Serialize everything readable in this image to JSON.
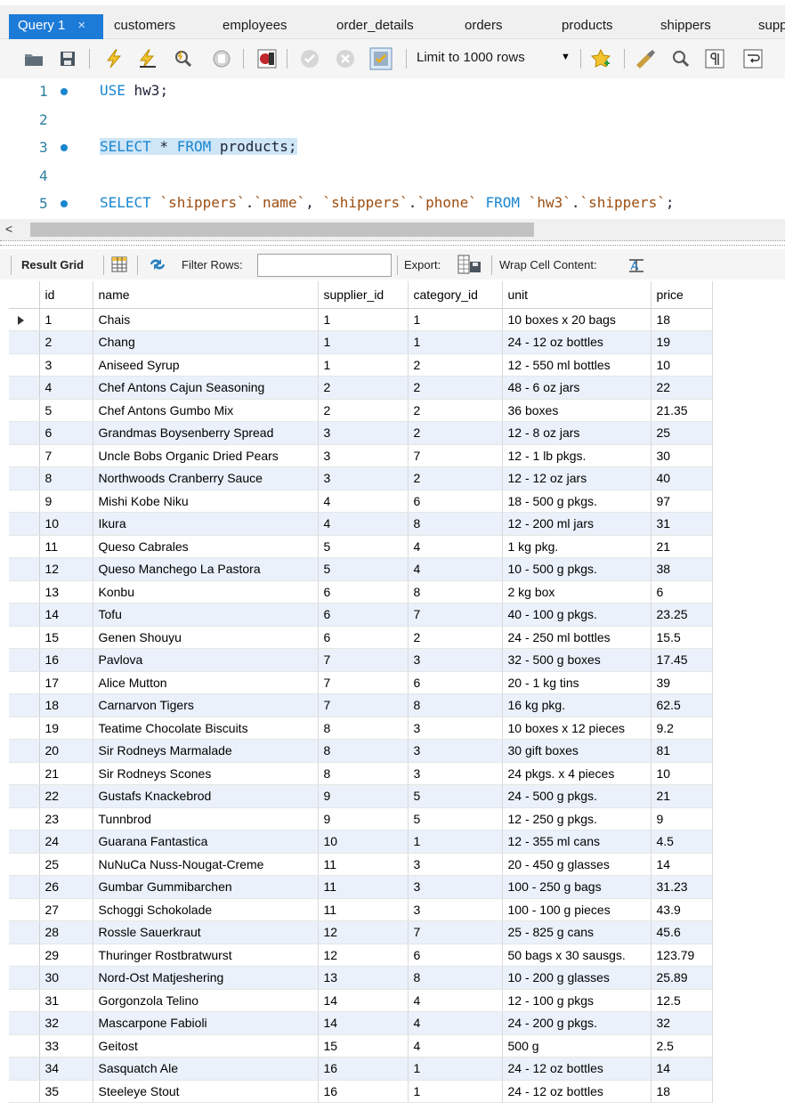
{
  "tabs": [
    {
      "label": "Query 1",
      "active": true
    },
    {
      "label": "customers"
    },
    {
      "label": "employees"
    },
    {
      "label": "order_details"
    },
    {
      "label": "orders"
    },
    {
      "label": "products"
    },
    {
      "label": "shippers"
    },
    {
      "label": "supp"
    }
  ],
  "tab_close": "×",
  "toolbar": {
    "limit_label": "Limit to 1000 rows",
    "limit_arrow": "▼"
  },
  "editor": {
    "lines": [
      {
        "number": "1",
        "dot": true,
        "parts": [
          {
            "t": "USE",
            "c": "kw"
          },
          {
            "t": " hw3;",
            "c": "ident"
          }
        ]
      },
      {
        "number": "2",
        "dot": false,
        "parts": []
      },
      {
        "number": "3",
        "dot": true,
        "highlight": true,
        "parts": [
          {
            "t": "SELECT",
            "c": "kw"
          },
          {
            "t": " * ",
            "c": "ident"
          },
          {
            "t": "FROM",
            "c": "kw"
          },
          {
            "t": " products;",
            "c": "ident"
          }
        ]
      },
      {
        "number": "4",
        "dot": false,
        "parts": []
      },
      {
        "number": "5",
        "dot": true,
        "parts": [
          {
            "t": "SELECT",
            "c": "kw"
          },
          {
            "t": " ",
            "c": "ident"
          },
          {
            "t": "`shippers`",
            "c": "str"
          },
          {
            "t": ".",
            "c": "ident"
          },
          {
            "t": "`name`",
            "c": "str"
          },
          {
            "t": ", ",
            "c": "ident"
          },
          {
            "t": "`shippers`",
            "c": "str"
          },
          {
            "t": ".",
            "c": "ident"
          },
          {
            "t": "`phone`",
            "c": "str"
          },
          {
            "t": " ",
            "c": "ident"
          },
          {
            "t": "FROM",
            "c": "kw"
          },
          {
            "t": " ",
            "c": "ident"
          },
          {
            "t": "`hw3`",
            "c": "str"
          },
          {
            "t": ".",
            "c": "ident"
          },
          {
            "t": "`shippers`",
            "c": "str"
          },
          {
            "t": ";",
            "c": "ident"
          }
        ]
      }
    ]
  },
  "scroll_left": "<",
  "result_toolbar": {
    "result_grid": "Result Grid",
    "filter_rows": "Filter Rows:",
    "filter_value": "",
    "export": "Export:",
    "wrap": "Wrap Cell Content:"
  },
  "grid": {
    "columns": [
      "id",
      "name",
      "supplier_id",
      "category_id",
      "unit",
      "price"
    ],
    "rows": [
      [
        "1",
        "Chais",
        "1",
        "1",
        "10 boxes x 20 bags",
        "18"
      ],
      [
        "2",
        "Chang",
        "1",
        "1",
        "24 - 12 oz bottles",
        "19"
      ],
      [
        "3",
        "Aniseed Syrup",
        "1",
        "2",
        "12 - 550 ml bottles",
        "10"
      ],
      [
        "4",
        "Chef Antons Cajun Seasoning",
        "2",
        "2",
        "48 - 6 oz jars",
        "22"
      ],
      [
        "5",
        "Chef Antons Gumbo Mix",
        "2",
        "2",
        "36 boxes",
        "21.35"
      ],
      [
        "6",
        "Grandmas Boysenberry Spread",
        "3",
        "2",
        "12 - 8 oz jars",
        "25"
      ],
      [
        "7",
        "Uncle Bobs Organic Dried Pears",
        "3",
        "7",
        "12 - 1 lb pkgs.",
        "30"
      ],
      [
        "8",
        "Northwoods Cranberry Sauce",
        "3",
        "2",
        "12 - 12 oz jars",
        "40"
      ],
      [
        "9",
        "Mishi Kobe Niku",
        "4",
        "6",
        "18 - 500 g pkgs.",
        "97"
      ],
      [
        "10",
        "Ikura",
        "4",
        "8",
        "12 - 200 ml jars",
        "31"
      ],
      [
        "11",
        "Queso Cabrales",
        "5",
        "4",
        "1 kg pkg.",
        "21"
      ],
      [
        "12",
        "Queso Manchego La Pastora",
        "5",
        "4",
        "10 - 500 g pkgs.",
        "38"
      ],
      [
        "13",
        "Konbu",
        "6",
        "8",
        "2 kg box",
        "6"
      ],
      [
        "14",
        "Tofu",
        "6",
        "7",
        "40 - 100 g pkgs.",
        "23.25"
      ],
      [
        "15",
        "Genen Shouyu",
        "6",
        "2",
        "24 - 250 ml bottles",
        "15.5"
      ],
      [
        "16",
        "Pavlova",
        "7",
        "3",
        "32 - 500 g boxes",
        "17.45"
      ],
      [
        "17",
        "Alice Mutton",
        "7",
        "6",
        "20 - 1 kg tins",
        "39"
      ],
      [
        "18",
        "Carnarvon Tigers",
        "7",
        "8",
        "16 kg pkg.",
        "62.5"
      ],
      [
        "19",
        "Teatime Chocolate Biscuits",
        "8",
        "3",
        "10 boxes x 12 pieces",
        "9.2"
      ],
      [
        "20",
        "Sir Rodneys Marmalade",
        "8",
        "3",
        "30 gift boxes",
        "81"
      ],
      [
        "21",
        "Sir Rodneys Scones",
        "8",
        "3",
        "24 pkgs. x 4 pieces",
        "10"
      ],
      [
        "22",
        "Gustafs Knackebrod",
        "9",
        "5",
        "24 - 500 g pkgs.",
        "21"
      ],
      [
        "23",
        "Tunnbrod",
        "9",
        "5",
        "12 - 250 g pkgs.",
        "9"
      ],
      [
        "24",
        "Guarana Fantastica",
        "10",
        "1",
        "12 - 355 ml cans",
        "4.5"
      ],
      [
        "25",
        "NuNuCa Nuss-Nougat-Creme",
        "11",
        "3",
        "20 - 450 g glasses",
        "14"
      ],
      [
        "26",
        "Gumbar Gummibarchen",
        "11",
        "3",
        "100 - 250 g bags",
        "31.23"
      ],
      [
        "27",
        "Schoggi Schokolade",
        "11",
        "3",
        "100 - 100 g pieces",
        "43.9"
      ],
      [
        "28",
        "Rossle Sauerkraut",
        "12",
        "7",
        "25 - 825 g cans",
        "45.6"
      ],
      [
        "29",
        "Thuringer Rostbratwurst",
        "12",
        "6",
        "50 bags x 30 sausgs.",
        "123.79"
      ],
      [
        "30",
        "Nord-Ost Matjeshering",
        "13",
        "8",
        "10 - 200 g glasses",
        "25.89"
      ],
      [
        "31",
        "Gorgonzola Telino",
        "14",
        "4",
        "12 - 100 g pkgs",
        "12.5"
      ],
      [
        "32",
        "Mascarpone Fabioli",
        "14",
        "4",
        "24 - 200 g pkgs.",
        "32"
      ],
      [
        "33",
        "Geitost",
        "15",
        "4",
        "500 g",
        "2.5"
      ],
      [
        "34",
        "Sasquatch Ale",
        "16",
        "1",
        "24 - 12 oz bottles",
        "14"
      ],
      [
        "35",
        "Steeleye Stout",
        "16",
        "1",
        "24 - 12 oz bottles",
        "18"
      ]
    ]
  },
  "colors": {
    "active_tab": "#1d7bd8",
    "keyword": "#1a86d0",
    "string": "#9c4d10",
    "alt_row": "#eaf1fa",
    "line_highlight": "#cfe6f7"
  }
}
